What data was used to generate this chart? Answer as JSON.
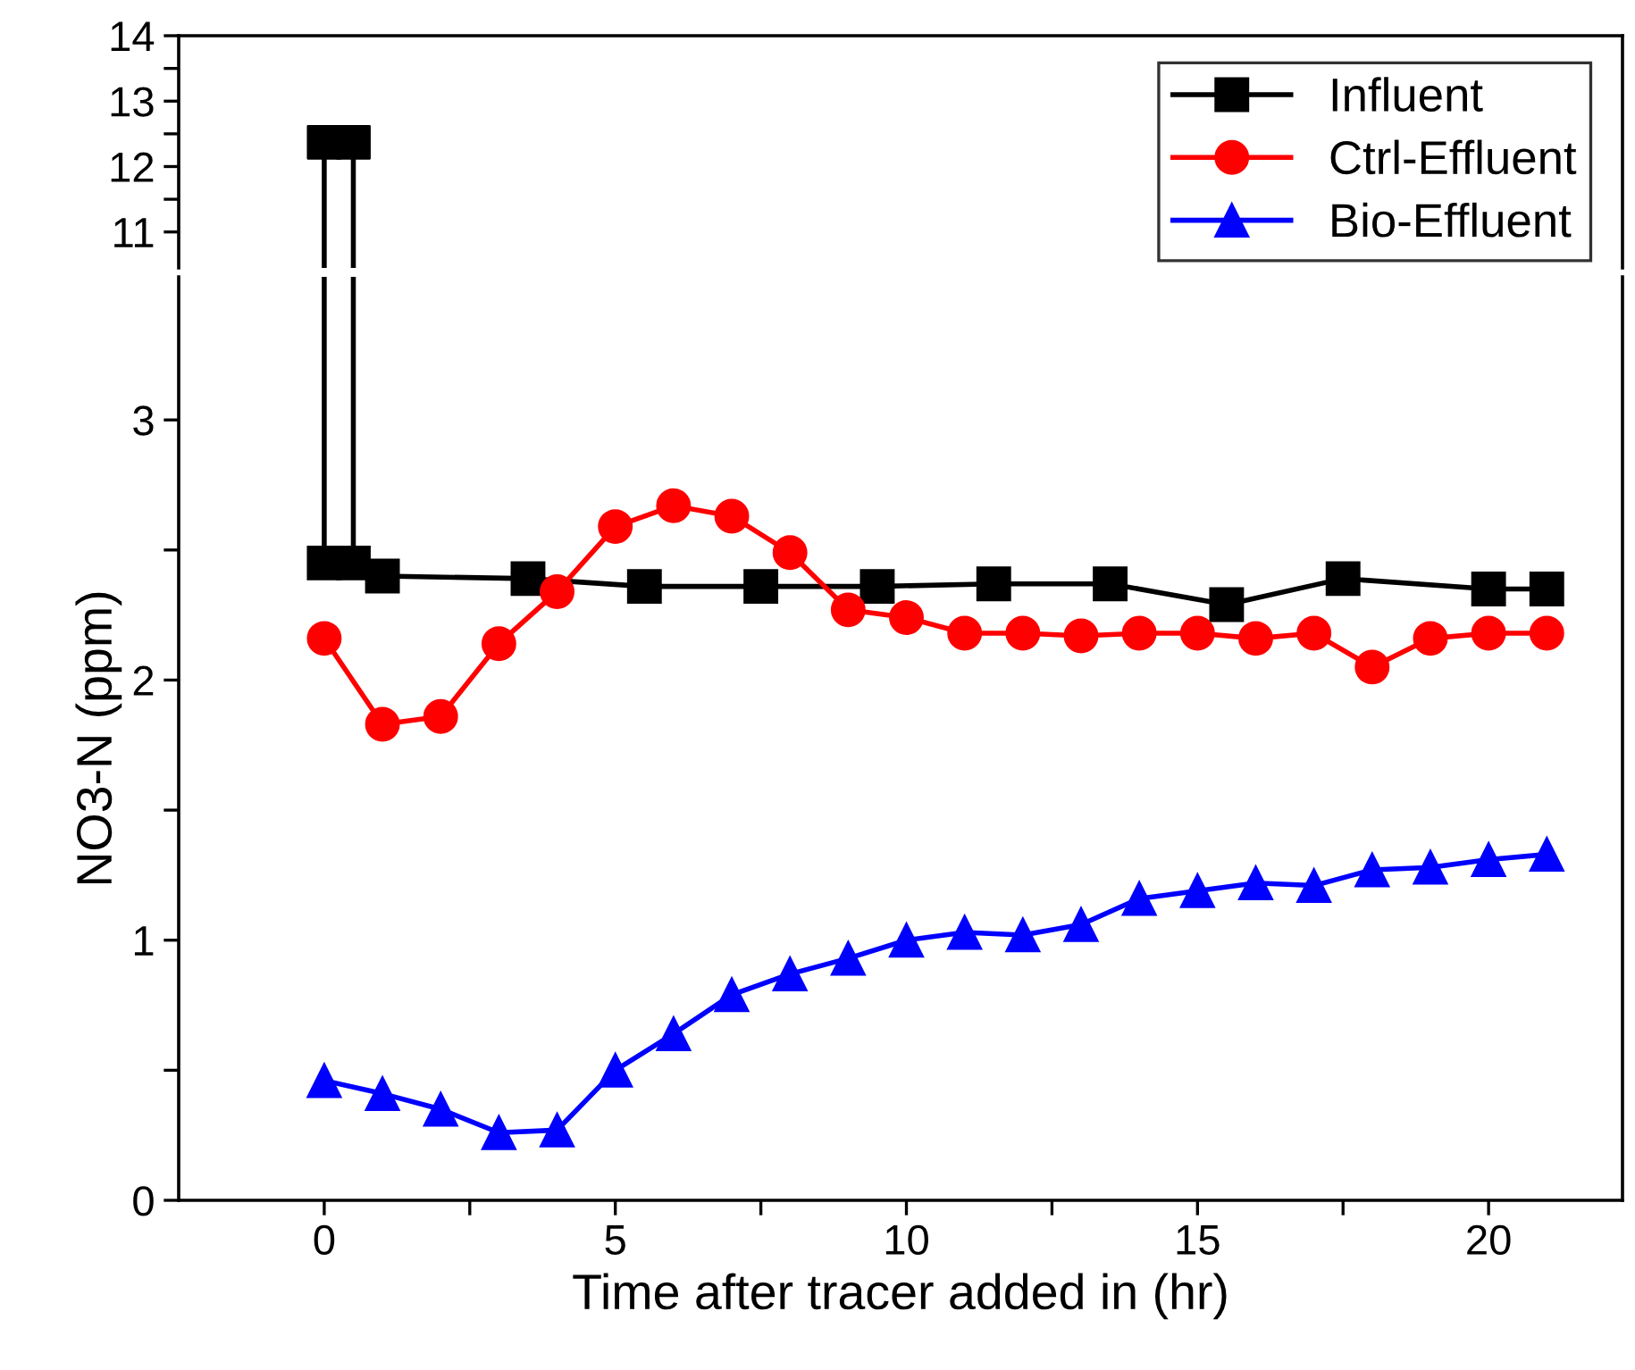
{
  "chart_data": [
    {
      "type": "line",
      "xlim": [
        -2.5,
        22.3
      ],
      "ylim": [
        10.45,
        14
      ],
      "yticks": [
        11,
        {
          "value": 11.5,
          "label": null
        },
        12,
        {
          "value": 12.5,
          "label": null
        },
        13,
        {
          "value": 13.5,
          "label": null
        },
        14
      ],
      "tick_labels": "y",
      "marker": "square",
      "series": [
        {
          "type": "scatter",
          "color": "#000000",
          "x": [
            0,
            0.5
          ],
          "values": [
            12.37,
            12.37
          ]
        }
      ]
    },
    {
      "type": "line",
      "xlabel": "Time after tracer added in (hr)",
      "ylabel": "NO3-N (ppm)",
      "xlim": [
        -2.5,
        22.3
      ],
      "xticks": [
        0,
        {
          "value": 2.5,
          "label": null
        },
        5,
        {
          "value": 7.5,
          "label": null
        },
        10,
        {
          "value": 12.5,
          "label": null
        },
        15,
        {
          "value": 17.5,
          "label": null
        },
        20
      ],
      "ylim": [
        0,
        3.55
      ],
      "yticks": [
        0,
        {
          "value": 0.5,
          "label": null
        },
        1,
        {
          "value": 1.5,
          "label": null
        },
        2,
        {
          "value": 2.5,
          "label": null
        },
        3
      ],
      "legend": "top right",
      "grid": false,
      "series": [
        {
          "name": "Influent",
          "color": "#000000",
          "marker": "square",
          "x": [
            0,
            0.5,
            1,
            3.5,
            5.5,
            7.5,
            9.5,
            11.5,
            13.5,
            15.5,
            17.5,
            20,
            21
          ],
          "values": [
            2.45,
            2.45,
            2.4,
            2.39,
            2.36,
            2.36,
            2.36,
            2.37,
            2.37,
            2.29,
            2.39,
            2.35,
            2.35
          ]
        },
        {
          "name": "Ctrl-Effluent",
          "color": "#ff0000",
          "marker": "circle",
          "x": [
            0,
            1,
            2,
            3,
            4,
            5,
            6,
            7,
            8,
            9,
            10,
            11,
            12,
            13,
            14,
            15,
            16,
            17,
            18,
            19,
            20,
            21
          ],
          "values": [
            2.16,
            1.83,
            1.86,
            2.14,
            2.34,
            2.59,
            2.67,
            2.63,
            2.49,
            2.27,
            2.24,
            2.18,
            2.18,
            2.17,
            2.18,
            2.18,
            2.16,
            2.18,
            2.05,
            2.16,
            2.18,
            2.18
          ]
        },
        {
          "name": "Bio-Effluent",
          "color": "#0000ff",
          "marker": "triangle",
          "x": [
            0,
            1,
            2,
            3,
            4,
            5,
            6,
            7,
            8,
            9,
            10,
            11,
            12,
            13,
            14,
            15,
            16,
            17,
            18,
            19,
            20,
            21
          ],
          "values": [
            0.46,
            0.41,
            0.35,
            0.26,
            0.27,
            0.5,
            0.64,
            0.79,
            0.87,
            0.93,
            1.0,
            1.03,
            1.02,
            1.06,
            1.16,
            1.19,
            1.22,
            1.21,
            1.27,
            1.28,
            1.31,
            1.33
          ]
        }
      ]
    }
  ]
}
